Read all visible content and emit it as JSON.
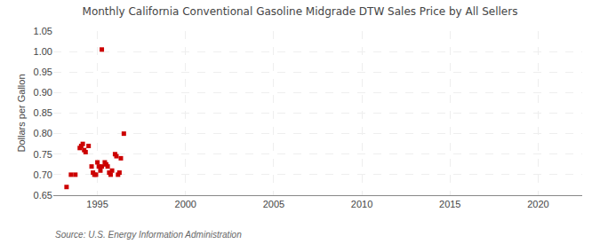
{
  "chart_data": {
    "type": "scatter",
    "title": "Monthly California Conventional Gasoline Midgrade DTW Sales Price by All Sellers",
    "ylabel": "Dollars per Gallon",
    "annotations": [
      "Source: U.S. Energy Information Administration"
    ],
    "color": "#cc0000",
    "marker": "square",
    "grid": true,
    "xlim": [
      1992.5,
      2022.5
    ],
    "ylim": [
      0.65,
      1.05
    ],
    "xticks": [
      1995,
      2000,
      2005,
      2010,
      2015,
      2020
    ],
    "yticks": [
      0.65,
      {
        "value": 0.7,
        "label": "0.70"
      },
      0.75,
      {
        "value": 0.8,
        "label": "0.80"
      },
      0.85,
      {
        "value": 0.9,
        "label": "0.90"
      },
      0.95,
      {
        "value": 1.0,
        "label": "1.00"
      },
      1.05
    ],
    "x": [
      1993.25,
      1993.5,
      1993.75,
      1994.0,
      1994.08,
      1994.17,
      1994.25,
      1994.33,
      1994.5,
      1994.67,
      1994.75,
      1994.83,
      1994.92,
      1995.0,
      1995.08,
      1995.17,
      1995.25,
      1995.42,
      1995.5,
      1995.58,
      1995.67,
      1995.75,
      1995.83,
      1996.0,
      1996.08,
      1996.17,
      1996.25,
      1996.33,
      1996.5,
      1995.25
    ],
    "values": [
      0.67,
      0.7,
      0.7,
      0.765,
      0.77,
      0.775,
      0.76,
      0.755,
      0.77,
      0.72,
      0.705,
      0.7,
      0.7,
      0.73,
      0.72,
      0.71,
      0.72,
      0.73,
      0.725,
      0.72,
      0.705,
      0.7,
      0.71,
      0.75,
      0.745,
      0.7,
      0.705,
      0.74,
      0.8,
      1.005
    ]
  }
}
